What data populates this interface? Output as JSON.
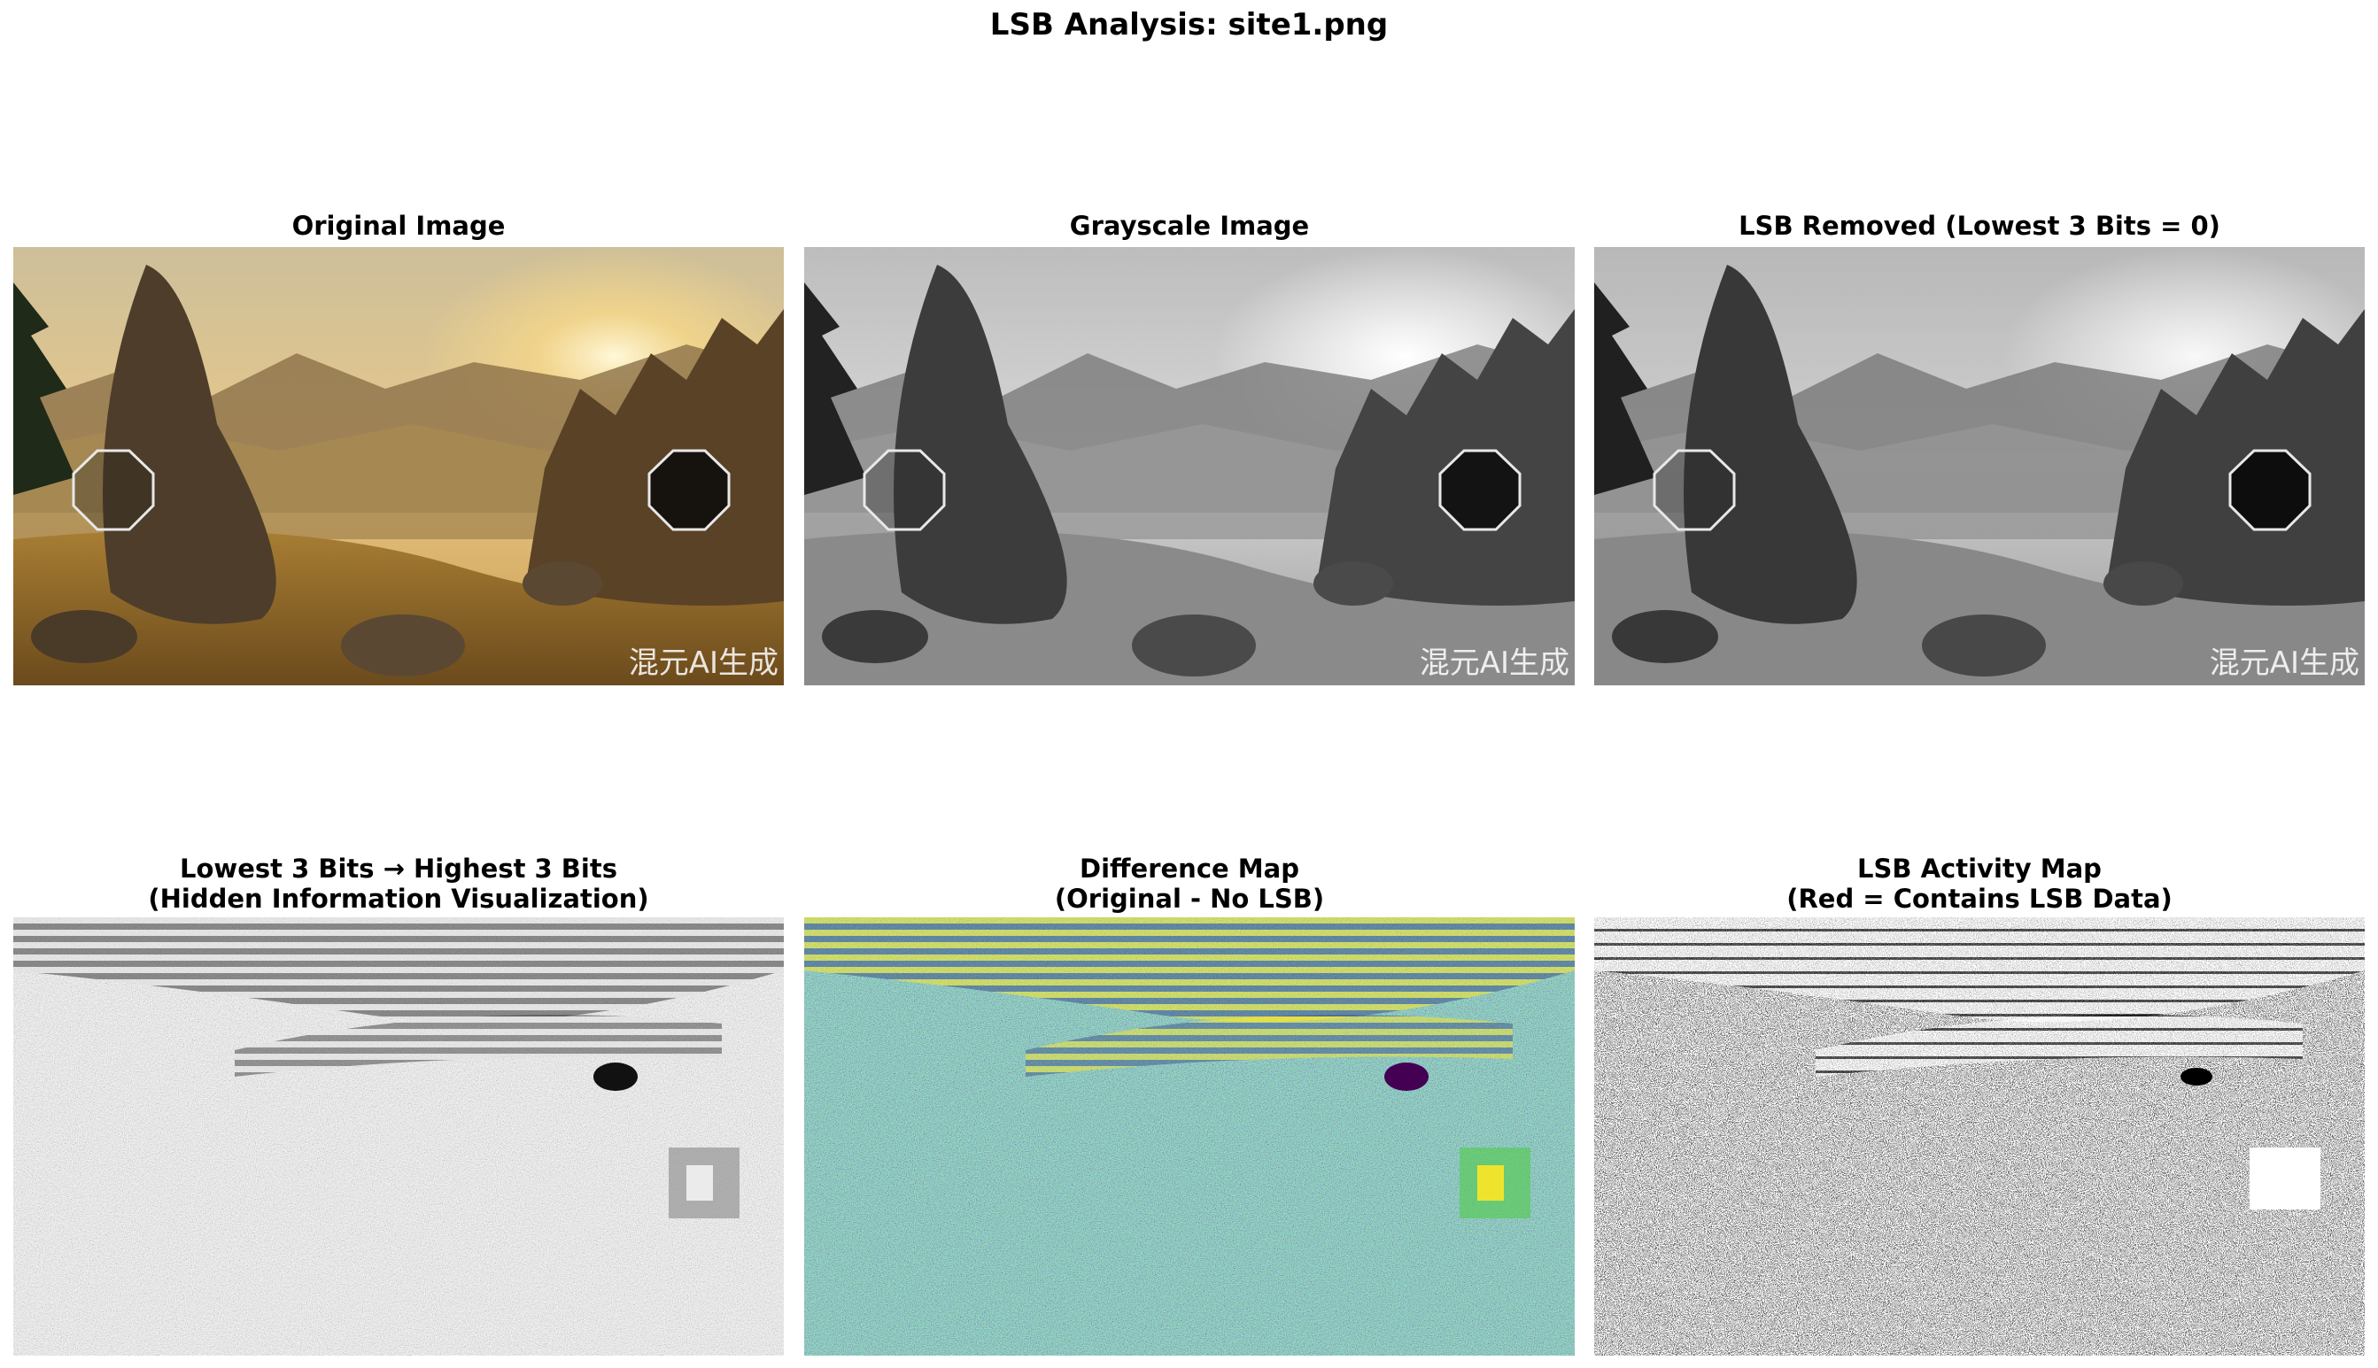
{
  "figure": {
    "title": "LSB Analysis: site1.png"
  },
  "panels": {
    "original": {
      "title": "Original Image",
      "watermark": "混元AI生成"
    },
    "grayscale": {
      "title": "Grayscale Image",
      "watermark": "混元AI生成"
    },
    "lsb_removed": {
      "title": "LSB Removed (Lowest 3 Bits = 0)",
      "watermark": "混元AI生成"
    },
    "bits_shifted": {
      "title_line1": "Lowest 3 Bits → Highest 3 Bits",
      "title_line2": "(Hidden Information Visualization)"
    },
    "difference": {
      "title_line1": "Difference Map",
      "title_line2": "(Original - No LSB)"
    },
    "activity": {
      "title_line1": "LSB Activity Map",
      "title_line2": "(Red = Contains LSB Data)"
    }
  },
  "colors": {
    "sky_warm": "#e9d6a8",
    "sun": "#fff4cc",
    "mountain_warm": "#9a7a48",
    "ground_warm": "#b68a3a",
    "rock_warm": "#4a3a28",
    "viridis_dark": "#440154",
    "viridis_mid": "#21918c",
    "viridis_light": "#fde725"
  }
}
